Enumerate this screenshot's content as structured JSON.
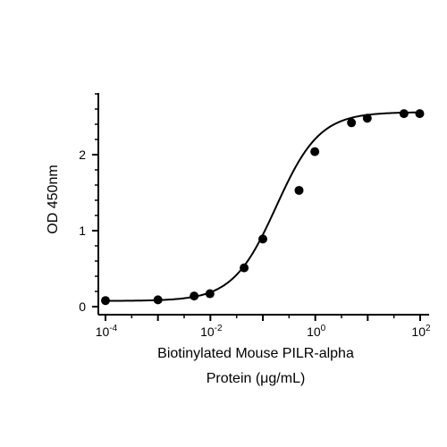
{
  "chart_data": {
    "type": "scatter",
    "title": "",
    "xlabel_line1": "Biotinylated Mouse PILR-alpha",
    "xlabel_line2": "Protein (μg/mL)",
    "ylabel": "OD 450nm",
    "x_scale": "log",
    "xlim": [
      7e-05,
      300
    ],
    "ylim": [
      0,
      2.8
    ],
    "x_ticks": [
      {
        "value": 0.0001,
        "base": "10",
        "exp": "-4"
      },
      {
        "value": 0.01,
        "base": "10",
        "exp": "-2"
      },
      {
        "value": 1,
        "base": "10",
        "exp": "0"
      },
      {
        "value": 100,
        "base": "10",
        "exp": "2"
      }
    ],
    "y_ticks": [
      {
        "value": 0,
        "label": "0"
      },
      {
        "value": 1,
        "label": "1"
      },
      {
        "value": 2,
        "label": "2"
      }
    ],
    "grid": false,
    "legend": "none",
    "series": [
      {
        "points": [
          {
            "x": 0.0001,
            "y": 0.08
          },
          {
            "x": 0.001,
            "y": 0.09
          },
          {
            "x": 0.0049,
            "y": 0.14
          },
          {
            "x": 0.0098,
            "y": 0.17
          },
          {
            "x": 0.044,
            "y": 0.51
          },
          {
            "x": 0.1,
            "y": 0.89
          },
          {
            "x": 0.49,
            "y": 1.53
          },
          {
            "x": 0.98,
            "y": 2.04
          },
          {
            "x": 4.9,
            "y": 2.42
          },
          {
            "x": 9.8,
            "y": 2.48
          },
          {
            "x": 49,
            "y": 2.54
          },
          {
            "x": 98,
            "y": 2.54
          }
        ],
        "fit": {
          "model": "4PL",
          "bottom": 0.075,
          "top": 2.56,
          "ec50": 0.18,
          "hill": 1.05
        }
      }
    ]
  }
}
